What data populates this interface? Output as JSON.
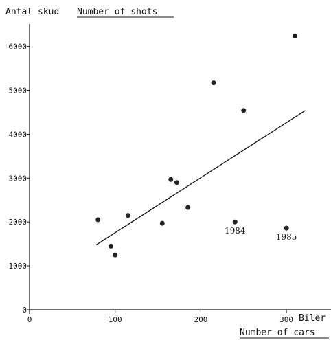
{
  "chart_data": {
    "type": "scatter",
    "y_title_primary": "Antal skud",
    "y_title_secondary": "Number of shots",
    "x_title_primary": "Biler",
    "x_title_secondary": "Number of cars",
    "x_ticks": [
      0,
      100,
      200,
      300
    ],
    "y_ticks": [
      0,
      1000,
      2000,
      3000,
      4000,
      5000,
      6000
    ],
    "xlim": [
      0,
      350
    ],
    "ylim": [
      0,
      6500
    ],
    "grid": false,
    "points": [
      {
        "x": 80,
        "y": 2050
      },
      {
        "x": 95,
        "y": 1450
      },
      {
        "x": 100,
        "y": 1250
      },
      {
        "x": 115,
        "y": 2150
      },
      {
        "x": 155,
        "y": 1970
      },
      {
        "x": 165,
        "y": 2970
      },
      {
        "x": 172,
        "y": 2900
      },
      {
        "x": 185,
        "y": 2330
      },
      {
        "x": 215,
        "y": 5170
      },
      {
        "x": 240,
        "y": 2000,
        "label": "1984"
      },
      {
        "x": 250,
        "y": 4540
      },
      {
        "x": 300,
        "y": 1860,
        "label": "1985"
      },
      {
        "x": 310,
        "y": 6240
      }
    ],
    "trend_line": {
      "x": [
        78,
        322
      ],
      "y": [
        1480,
        4540
      ]
    }
  }
}
